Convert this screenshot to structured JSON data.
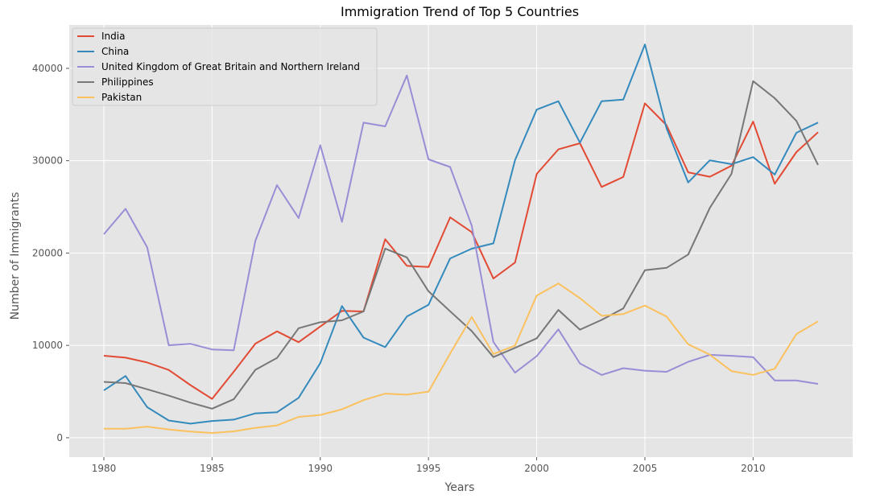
{
  "chart_data": {
    "type": "line",
    "title": "Immigration Trend of Top 5 Countries",
    "xlabel": "Years",
    "ylabel": "Number of Immigrants",
    "xlim": [
      1978.4,
      2014.6
    ],
    "ylim": [
      -2100,
      44700
    ],
    "xticks": [
      1980,
      1985,
      1990,
      1995,
      2000,
      2005,
      2010
    ],
    "yticks": [
      0,
      10000,
      20000,
      30000,
      40000
    ],
    "grid": true,
    "legend_position": "top-left",
    "background": "#e5e5e5",
    "x": [
      1980,
      1981,
      1982,
      1983,
      1984,
      1985,
      1986,
      1987,
      1988,
      1989,
      1990,
      1991,
      1992,
      1993,
      1994,
      1995,
      1996,
      1997,
      1998,
      1999,
      2000,
      2001,
      2002,
      2003,
      2004,
      2005,
      2006,
      2007,
      2008,
      2009,
      2010,
      2011,
      2012,
      2013
    ],
    "series": [
      {
        "name": "India",
        "color": "#e24a33",
        "values": [
          8880,
          8670,
          8147,
          7338,
          5704,
          4211,
          7150,
          10189,
          11522,
          10343,
          12041,
          13734,
          13673,
          21496,
          18620,
          18489,
          23859,
          22268,
          17241,
          18974,
          28572,
          31223,
          31889,
          27155,
          28235,
          36210,
          33848,
          28742,
          28261,
          29456,
          34235,
          27509,
          30933,
          33087
        ]
      },
      {
        "name": "China",
        "color": "#348abd",
        "values": [
          5123,
          6682,
          3308,
          1863,
          1527,
          1816,
          1960,
          2643,
          2758,
          4323,
          8076,
          14255,
          10846,
          9817,
          13128,
          14398,
          19415,
          20475,
          21049,
          30069,
          35529,
          36434,
          31961,
          36439,
          36619,
          42584,
          33518,
          27642,
          30037,
          29622,
          30391,
          28502,
          33024,
          34129
        ]
      },
      {
        "name": "United Kingdom of Great Britain and Northern Ireland",
        "color": "#988ed5",
        "values": [
          22045,
          24796,
          20620,
          10015,
          10170,
          9564,
          9470,
          21337,
          27359,
          23795,
          31668,
          23380,
          34123,
          33720,
          39231,
          30145,
          29322,
          22965,
          10367,
          7045,
          8840,
          11728,
          8046,
          6797,
          7533,
          7258,
          7140,
          8216,
          8979,
          8876,
          8724,
          6204,
          6195,
          5827
        ]
      },
      {
        "name": "Philippines",
        "color": "#777777",
        "values": [
          6051,
          5921,
          5249,
          4562,
          3801,
          3150,
          4166,
          7360,
          8639,
          11865,
          12509,
          12718,
          13670,
          20479,
          19532,
          15864,
          13692,
          11549,
          8735,
          9734,
          10763,
          13836,
          11707,
          12758,
          14004,
          18139,
          18400,
          19837,
          24887,
          28573,
          38617,
          36765,
          34315,
          29544
        ]
      },
      {
        "name": "Pakistan",
        "color": "#fbc15e",
        "values": [
          978,
          972,
          1201,
          900,
          668,
          514,
          691,
          1072,
          1334,
          2261,
          2470,
          3079,
          4071,
          4777,
          4666,
          4994,
          9125,
          13073,
          9068,
          9979,
          15400,
          16708,
          15110,
          13205,
          13399,
          14314,
          13127,
          10124,
          8994,
          7217,
          6811,
          7468,
          11227,
          12603
        ]
      }
    ]
  }
}
